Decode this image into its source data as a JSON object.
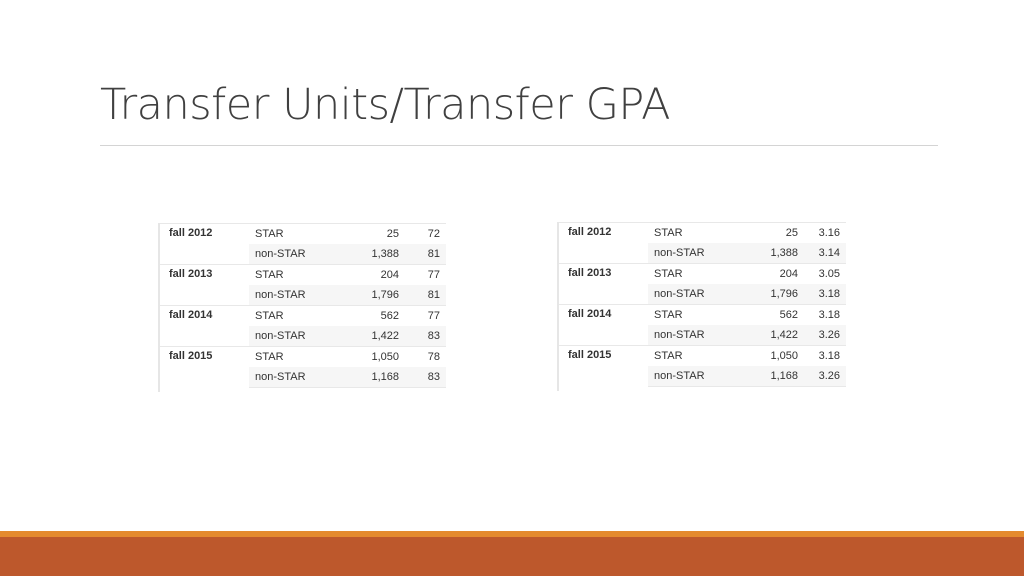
{
  "slide": {
    "title": "Transfer Units/Transfer GPA",
    "colors": {
      "accent_orange": "#e48a2e",
      "footer_rust": "#bd582c",
      "title_gray": "#404040"
    }
  },
  "units_table": {
    "rows": [
      {
        "term": "fall 2012",
        "group": "STAR",
        "n": "25",
        "value": "72"
      },
      {
        "term": "",
        "group": "non-STAR",
        "n": "1,388",
        "value": "81"
      },
      {
        "term": "fall 2013",
        "group": "STAR",
        "n": "204",
        "value": "77"
      },
      {
        "term": "",
        "group": "non-STAR",
        "n": "1,796",
        "value": "81"
      },
      {
        "term": "fall 2014",
        "group": "STAR",
        "n": "562",
        "value": "77"
      },
      {
        "term": "",
        "group": "non-STAR",
        "n": "1,422",
        "value": "83"
      },
      {
        "term": "fall 2015",
        "group": "STAR",
        "n": "1,050",
        "value": "78"
      },
      {
        "term": "",
        "group": "non-STAR",
        "n": "1,168",
        "value": "83"
      }
    ]
  },
  "gpa_table": {
    "rows": [
      {
        "term": "fall 2012",
        "group": "STAR",
        "n": "25",
        "value": "3.16"
      },
      {
        "term": "",
        "group": "non-STAR",
        "n": "1,388",
        "value": "3.14"
      },
      {
        "term": "fall 2013",
        "group": "STAR",
        "n": "204",
        "value": "3.05"
      },
      {
        "term": "",
        "group": "non-STAR",
        "n": "1,796",
        "value": "3.18"
      },
      {
        "term": "fall 2014",
        "group": "STAR",
        "n": "562",
        "value": "3.18"
      },
      {
        "term": "",
        "group": "non-STAR",
        "n": "1,422",
        "value": "3.26"
      },
      {
        "term": "fall 2015",
        "group": "STAR",
        "n": "1,050",
        "value": "3.18"
      },
      {
        "term": "",
        "group": "non-STAR",
        "n": "1,168",
        "value": "3.26"
      }
    ]
  }
}
